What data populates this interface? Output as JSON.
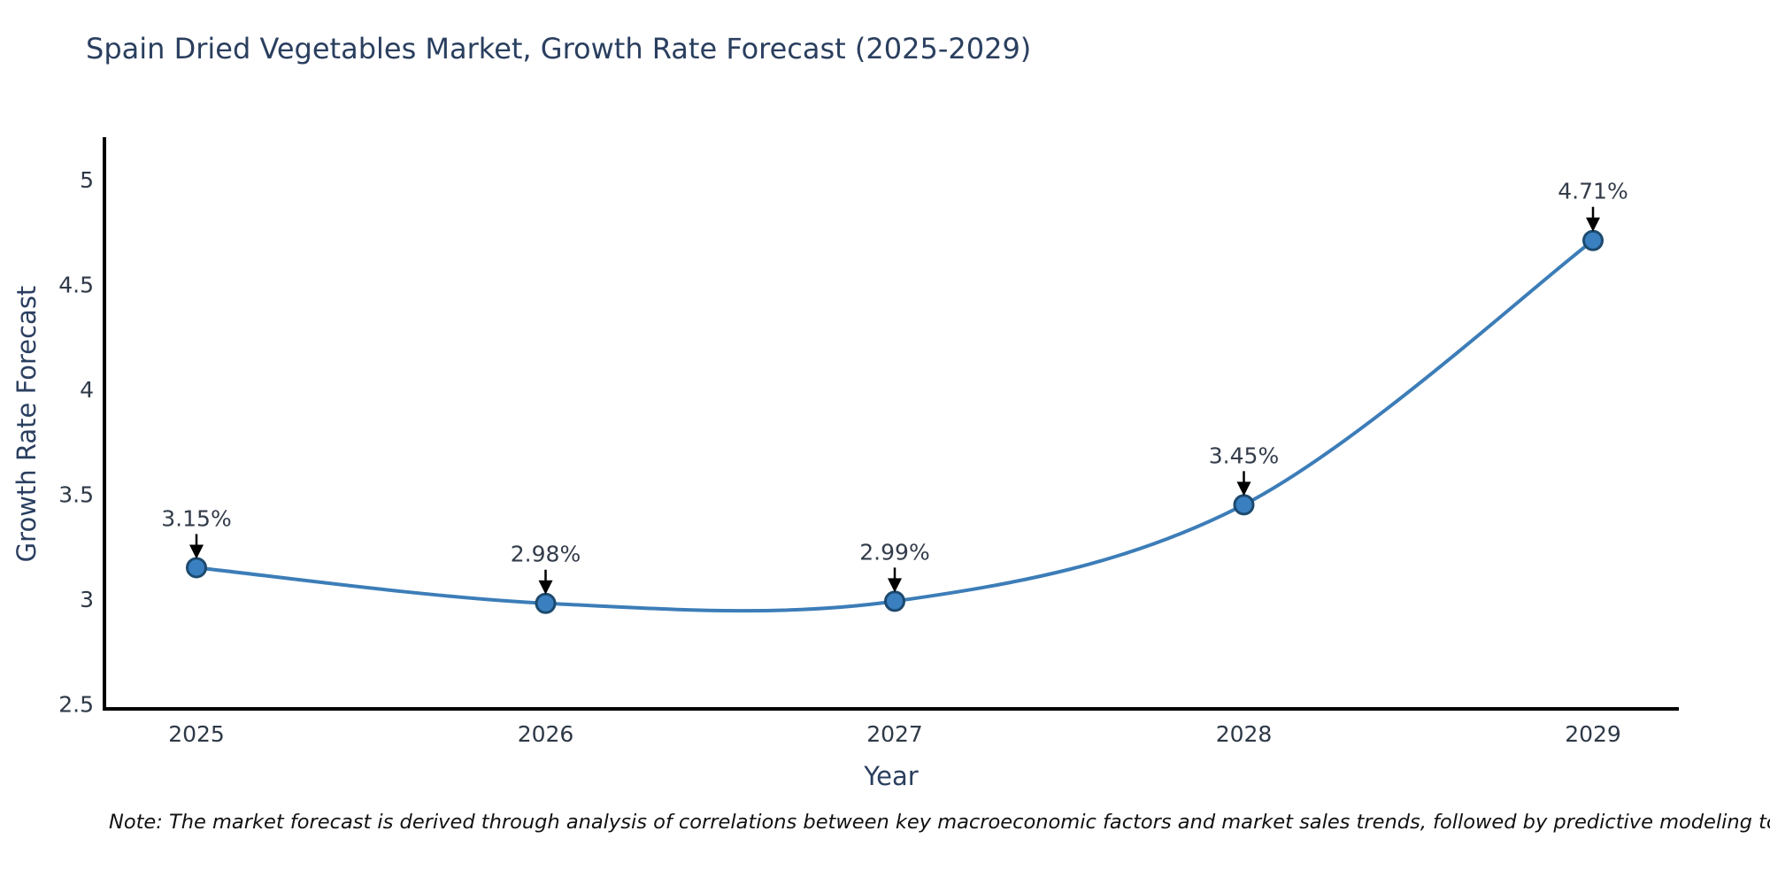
{
  "chart_data": {
    "type": "line",
    "title": "Spain Dried Vegetables Market, Growth Rate Forecast (2025-2029)",
    "xlabel": "Year",
    "ylabel": "Growth Rate Forecast",
    "categories": [
      "2025",
      "2026",
      "2027",
      "2028",
      "2029"
    ],
    "values": [
      3.15,
      2.98,
      2.99,
      3.45,
      4.71
    ],
    "point_labels": [
      "3.15%",
      "2.98%",
      "2.99%",
      "3.45%",
      "4.71%"
    ],
    "ylim": [
      2.5,
      5
    ],
    "yticks": [
      "2.5",
      "3",
      "3.5",
      "4",
      "4.5",
      "5"
    ],
    "ytick_values": [
      2.5,
      3,
      3.5,
      4,
      4.5,
      5
    ],
    "grid": false,
    "legend": "none",
    "smooth": true,
    "note": "Note: The market forecast is derived through analysis of correlations between key macroeconomic factors and market sales trends, followed by predictive modeling to project future sales",
    "colors": {
      "line": "#3c7db8",
      "marker_fill": "#3a80c1",
      "marker_edge": "#1d4a6e",
      "axis": "#000000",
      "tick_text": "#2e3947",
      "annotation_text": "#333c4a",
      "annotation_arrow": "#000000",
      "title_text": "#2a3f5f"
    }
  }
}
